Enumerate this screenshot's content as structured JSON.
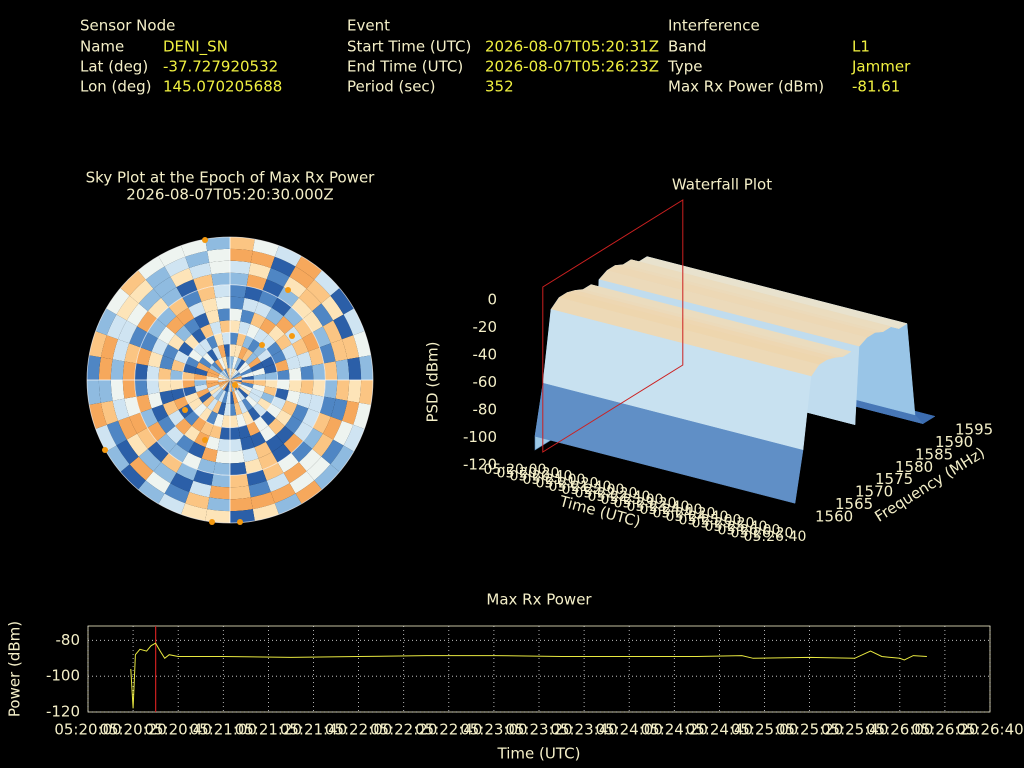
{
  "header": {
    "columns": [
      {
        "title": "Sensor Node",
        "rows": [
          [
            "Name",
            "DENI_SN"
          ],
          [
            "Lat (deg)",
            "-37.727920532"
          ],
          [
            "Lon (deg)",
            "145.070205688"
          ]
        ]
      },
      {
        "title": "Event",
        "rows": [
          [
            "Start Time (UTC)",
            "2026-08-07T05:20:31Z"
          ],
          [
            "End Time (UTC)",
            "2026-08-07T05:26:23Z"
          ],
          [
            "Period (sec)",
            "352"
          ]
        ]
      },
      {
        "title": "Interference",
        "rows": [
          [
            "Band",
            "L1"
          ],
          [
            "Type",
            "Jammer"
          ],
          [
            "Max Rx Power (dBm)",
            "-81.61"
          ]
        ]
      }
    ]
  },
  "chart_data": [
    {
      "type": "polar-heatmap",
      "title": "Sky Plot at the Epoch of Max Rx Power",
      "subtitle": "2026-08-07T05:20:30.000Z"
    },
    {
      "type": "waterfall",
      "title": "Waterfall Plot",
      "zlabel": "PSD (dBm)",
      "xlabel": "Time (UTC)",
      "ylabel": "Frequency (MHz)",
      "zlim": [
        -120,
        0
      ],
      "zticks": [
        0,
        -20,
        -40,
        -60,
        -80,
        -100,
        -120
      ],
      "ylim": [
        1560,
        1595
      ],
      "yticks": [
        1560,
        1565,
        1570,
        1575,
        1580,
        1585,
        1590,
        1595
      ],
      "xticks": [
        "05:20:00",
        "05:20:20",
        "05:20:40",
        "05:21:00",
        "05:21:20",
        "05:21:40",
        "05:22:00",
        "05:22:20",
        "05:22:40",
        "05:23:00",
        "05:23:20",
        "05:23:40",
        "05:24:00",
        "05:24:20",
        "05:24:40",
        "05:25:00",
        "05:25:20",
        "05:25:40",
        "05:26:00",
        "05:26:20",
        "05:26:40"
      ],
      "frequencies": [
        1560,
        1562,
        1564,
        1566,
        1568,
        1570,
        1572,
        1574,
        1575,
        1576,
        1578,
        1580,
        1582,
        1584,
        1586,
        1588,
        1590,
        1592,
        1595
      ],
      "values": [
        -110,
        -75,
        -25,
        -20,
        -20,
        -22,
        -25,
        -25,
        -80,
        -25,
        -22,
        -22,
        -25,
        -25,
        -30,
        -30,
        -100,
        -110,
        -110
      ],
      "marker_color": "#cc2020"
    },
    {
      "type": "line",
      "title": "Max Rx Power",
      "ylabel": "Power (dBm)",
      "xlabel": "Time (UTC)",
      "color": "#e8e840",
      "grid": true,
      "ylim": [
        -120,
        -72
      ],
      "yticks": [
        -80,
        -100,
        -120
      ],
      "xlim": [
        "05:20:00",
        "05:26:40"
      ],
      "xticks": [
        "05:20:00",
        "05:20:20",
        "05:20:40",
        "05:21:00",
        "05:21:20",
        "05:21:40",
        "05:22:00",
        "05:22:20",
        "05:22:40",
        "05:23:00",
        "05:23:20",
        "05:23:40",
        "05:24:00",
        "05:24:20",
        "05:24:40",
        "05:25:00",
        "05:25:20",
        "05:25:40",
        "05:26:00",
        "05:26:20",
        "05:26:40"
      ],
      "marker_x": "05:20:30",
      "marker_color": "#cc2020",
      "x": [
        "05:20:19",
        "05:20:20",
        "05:20:21",
        "05:20:23",
        "05:20:26",
        "05:20:28",
        "05:20:30",
        "05:20:32",
        "05:20:34",
        "05:20:36",
        "05:20:40",
        "05:21:00",
        "05:21:30",
        "05:22:00",
        "05:22:30",
        "05:23:00",
        "05:23:30",
        "05:24:00",
        "05:24:30",
        "05:24:50",
        "05:24:55",
        "05:25:20",
        "05:25:40",
        "05:25:47",
        "05:25:52",
        "05:26:00",
        "05:26:02",
        "05:26:06",
        "05:26:12"
      ],
      "values": [
        -96,
        -118,
        -88,
        -85,
        -86,
        -83,
        -81.61,
        -86,
        -90,
        -88,
        -89,
        -89,
        -89.5,
        -89,
        -88.5,
        -88.5,
        -89,
        -89,
        -89,
        -88.5,
        -90,
        -89.5,
        -90,
        -86,
        -89,
        -90,
        -91,
        -88.5,
        -89
      ]
    }
  ]
}
